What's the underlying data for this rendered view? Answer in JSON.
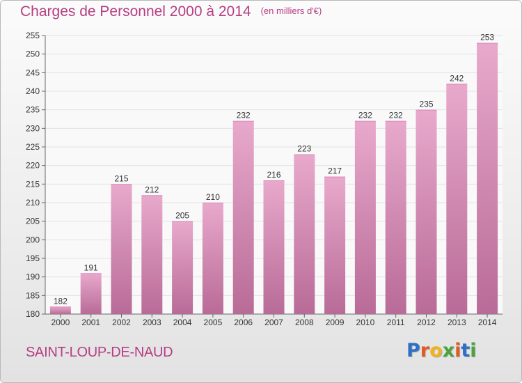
{
  "title": "Charges de Personnel 2000 à 2014",
  "subtitle": "(en milliers d'€)",
  "commune": "SAINT-LOUP-DE-NAUD",
  "logo": {
    "letters": [
      {
        "ch": "P",
        "color": "#2e6fc7"
      },
      {
        "ch": "r",
        "color": "#e25a24"
      },
      {
        "ch": "o",
        "color": "#f1b21e"
      },
      {
        "ch": "x",
        "color": "#4aa33c"
      },
      {
        "ch": "i",
        "color": "#e25a24"
      },
      {
        "ch": "t",
        "color": "#2e6fc7"
      },
      {
        "ch": "i",
        "color": "#4aa33c"
      }
    ]
  },
  "colors": {
    "accent": "#b63d83",
    "bar_light": "#e8a9cc",
    "bar_dark": "#b86b97",
    "grid": "#e2e2e2"
  },
  "chart_data": {
    "type": "bar",
    "categories": [
      "2000",
      "2001",
      "2002",
      "2003",
      "2004",
      "2005",
      "2006",
      "2007",
      "2008",
      "2009",
      "2010",
      "2011",
      "2012",
      "2013",
      "2014"
    ],
    "values": [
      182,
      191,
      215,
      212,
      205,
      210,
      232,
      216,
      223,
      217,
      232,
      232,
      235,
      242,
      253
    ],
    "ylim": [
      180,
      255
    ],
    "yticks": [
      180,
      185,
      190,
      195,
      200,
      205,
      210,
      215,
      220,
      225,
      230,
      235,
      240,
      245,
      250,
      255
    ],
    "data_labels": true,
    "grid": true
  }
}
